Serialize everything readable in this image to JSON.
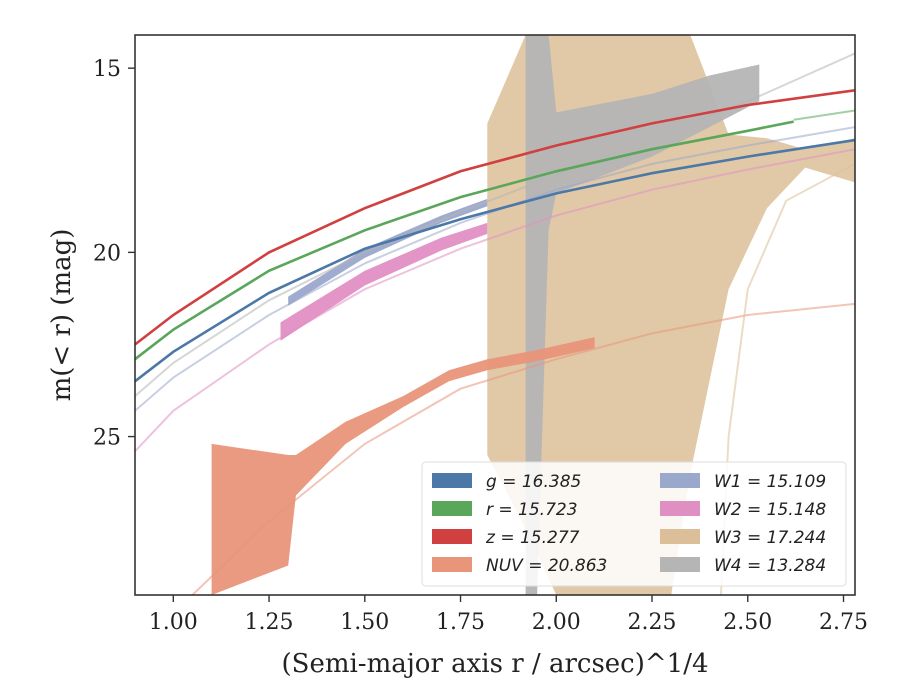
{
  "chart_data": {
    "type": "line",
    "title": "",
    "xlabel": "(Semi-major axis r / arcsec)^1/4",
    "ylabel": "m(< r) (mag)",
    "xlim": [
      0.9,
      2.78
    ],
    "ylim": [
      29.3,
      14.1
    ],
    "y_inverted": true,
    "x_ticks": [
      1.0,
      1.25,
      1.5,
      1.75,
      2.0,
      2.25,
      2.5,
      2.75
    ],
    "x_tick_labels": [
      "1.00",
      "1.25",
      "1.50",
      "1.75",
      "2.00",
      "2.25",
      "2.50",
      "2.75"
    ],
    "y_ticks": [
      15,
      20,
      25
    ],
    "y_tick_labels": [
      "15",
      "20",
      "25"
    ],
    "grid": false,
    "legend_placement": "lower-right",
    "legend_columns": 2,
    "series": [
      {
        "name": "g",
        "legend": "g = 16.385",
        "color": "#4c78a8",
        "faint": [
          [
            0.9,
            23.5
          ],
          [
            1.0,
            22.7
          ],
          [
            1.25,
            21.1
          ],
          [
            1.5,
            19.9
          ],
          [
            1.75,
            19.1
          ],
          [
            2.0,
            18.4
          ],
          [
            2.25,
            17.85
          ],
          [
            2.5,
            17.4
          ],
          [
            2.78,
            16.95
          ]
        ],
        "solid": [
          [
            0.9,
            23.5
          ],
          [
            1.0,
            22.7
          ],
          [
            1.25,
            21.1
          ],
          [
            1.5,
            19.9
          ],
          [
            1.75,
            19.1
          ],
          [
            2.0,
            18.4
          ],
          [
            2.25,
            17.85
          ],
          [
            2.5,
            17.4
          ],
          [
            2.78,
            16.95
          ]
        ],
        "band": []
      },
      {
        "name": "r",
        "legend": "r = 15.723",
        "color": "#5aa65a",
        "faint": [
          [
            2.62,
            16.4
          ],
          [
            2.78,
            16.15
          ]
        ],
        "solid": [
          [
            0.9,
            22.9
          ],
          [
            1.0,
            22.1
          ],
          [
            1.25,
            20.5
          ],
          [
            1.5,
            19.4
          ],
          [
            1.75,
            18.5
          ],
          [
            2.0,
            17.8
          ],
          [
            2.25,
            17.2
          ],
          [
            2.5,
            16.7
          ],
          [
            2.62,
            16.45
          ]
        ],
        "band": []
      },
      {
        "name": "z",
        "legend": "z = 15.277",
        "color": "#d04040",
        "faint": [],
        "solid": [
          [
            0.9,
            22.5
          ],
          [
            1.0,
            21.7
          ],
          [
            1.25,
            20.0
          ],
          [
            1.5,
            18.8
          ],
          [
            1.75,
            17.8
          ],
          [
            2.0,
            17.1
          ],
          [
            2.25,
            16.5
          ],
          [
            2.5,
            16.0
          ],
          [
            2.78,
            15.6
          ]
        ],
        "band": []
      },
      {
        "name": "NUV",
        "legend": "NUV = 20.863",
        "color": "#e8957a",
        "faint": [
          [
            1.05,
            29.3
          ],
          [
            1.25,
            27.3
          ],
          [
            1.5,
            25.2
          ],
          [
            1.75,
            23.7
          ],
          [
            2.0,
            22.9
          ],
          [
            2.25,
            22.2
          ],
          [
            2.5,
            21.7
          ],
          [
            2.78,
            21.4
          ]
        ],
        "solid": [],
        "band": [
          [
            1.1,
            25.2,
            29.3
          ],
          [
            1.3,
            25.5,
            28.5
          ],
          [
            1.32,
            25.5,
            26.6
          ],
          [
            1.45,
            24.6,
            25.2
          ],
          [
            1.6,
            23.9,
            24.2
          ],
          [
            1.72,
            23.2,
            23.5
          ],
          [
            1.82,
            22.9,
            23.2
          ],
          [
            1.95,
            22.65,
            22.95
          ],
          [
            2.1,
            22.3,
            22.6
          ]
        ]
      },
      {
        "name": "W1",
        "legend": "W1 = 15.109",
        "color": "#9aa8cc",
        "faint": [
          [
            0.9,
            24.3
          ],
          [
            1.0,
            23.4
          ],
          [
            1.25,
            21.7
          ],
          [
            1.5,
            20.3
          ],
          [
            1.75,
            19.2
          ],
          [
            2.0,
            18.3
          ],
          [
            2.25,
            17.6
          ],
          [
            2.5,
            17.1
          ],
          [
            2.78,
            16.6
          ]
        ],
        "solid": [],
        "band": [
          [
            1.3,
            21.2,
            21.45
          ],
          [
            1.5,
            19.9,
            20.15
          ],
          [
            1.7,
            19.0,
            19.2
          ],
          [
            1.82,
            18.55,
            18.75
          ]
        ]
      },
      {
        "name": "W2",
        "legend": "W2 = 15.148",
        "color": "#e08fc3",
        "faint": [
          [
            0.9,
            25.4
          ],
          [
            1.0,
            24.3
          ],
          [
            1.25,
            22.5
          ],
          [
            1.5,
            21.0
          ],
          [
            1.75,
            19.9
          ],
          [
            2.0,
            19.0
          ],
          [
            2.25,
            18.3
          ],
          [
            2.5,
            17.75
          ],
          [
            2.78,
            17.2
          ]
        ],
        "solid": [],
        "band": [
          [
            1.28,
            21.9,
            22.4
          ],
          [
            1.5,
            20.5,
            20.9
          ],
          [
            1.7,
            19.6,
            19.95
          ],
          [
            1.82,
            19.2,
            19.5
          ]
        ]
      },
      {
        "name": "W3",
        "legend": "W3 = 17.244",
        "color": "#dcbf98",
        "faint": [
          [
            2.43,
            29.3
          ],
          [
            2.45,
            25.0
          ],
          [
            2.5,
            21.0
          ],
          [
            2.6,
            18.6
          ],
          [
            2.78,
            17.6
          ]
        ],
        "solid": [],
        "band": [
          [
            1.82,
            16.5,
            25.5
          ],
          [
            1.92,
            14.1,
            27.5
          ],
          [
            2.0,
            14.1,
            29.3
          ],
          [
            2.3,
            14.1,
            29.3
          ],
          [
            2.35,
            14.1,
            26.0
          ],
          [
            2.45,
            16.8,
            21.0
          ],
          [
            2.55,
            16.9,
            18.8
          ],
          [
            2.65,
            17.2,
            17.7
          ],
          [
            2.78,
            16.9,
            18.1
          ]
        ]
      },
      {
        "name": "W4",
        "legend": "W4 = 13.284",
        "color": "#b5b5b5",
        "faint": [
          [
            0.9,
            23.9
          ],
          [
            1.0,
            23.0
          ],
          [
            1.25,
            21.3
          ],
          [
            1.5,
            20.0
          ],
          [
            1.75,
            18.9
          ],
          [
            2.0,
            17.9
          ],
          [
            2.25,
            16.9
          ],
          [
            2.5,
            15.9
          ],
          [
            2.78,
            14.6
          ]
        ],
        "solid": [],
        "band": [
          [
            1.92,
            14.1,
            29.3
          ],
          [
            1.95,
            14.1,
            29.3
          ],
          [
            1.98,
            14.1,
            19.4
          ],
          [
            2.0,
            16.2,
            18.4
          ],
          [
            2.25,
            15.7,
            17.4
          ],
          [
            2.4,
            15.2,
            16.6
          ],
          [
            2.53,
            14.9,
            15.9
          ]
        ]
      }
    ]
  }
}
